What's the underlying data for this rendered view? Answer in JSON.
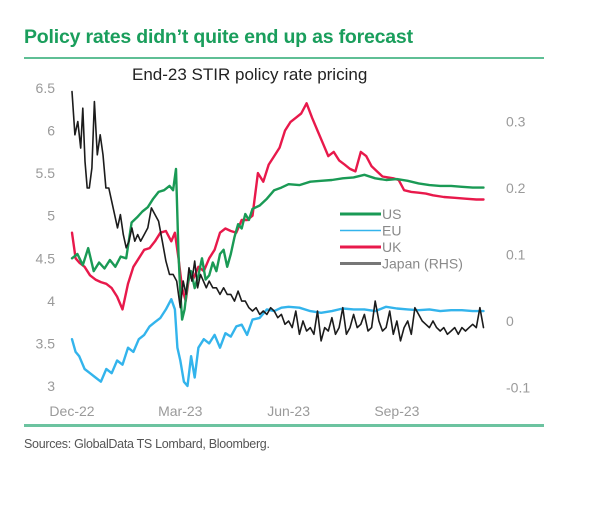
{
  "header": {
    "title": "Policy rates didn’t quite end up as forecast",
    "source": "Sources: GlobalData TS Lombard, Bloomberg."
  },
  "chart_data": {
    "type": "line",
    "title": "End-23 STIR policy rate pricing",
    "xlabel": "",
    "ylabel": "",
    "x_unit": "months since Dec-22",
    "x_ticks": [
      {
        "label": "Dec-22",
        "x": 0
      },
      {
        "label": "Mar-23",
        "x": 3
      },
      {
        "label": "Jun-23",
        "x": 6
      },
      {
        "label": "Sep-23",
        "x": 9
      }
    ],
    "xlim": [
      0,
      11.5
    ],
    "y_left": {
      "ticks": [
        "3",
        "3.5",
        "4",
        "4.5",
        "5",
        "5.5",
        "6",
        "6.5"
      ],
      "values": [
        3,
        3.5,
        4,
        4.5,
        5,
        5.5,
        6,
        6.5
      ],
      "ylim": [
        3,
        6.5
      ]
    },
    "y_right": {
      "ticks": [
        "-0.1",
        "0",
        "0.1",
        "0.2",
        "0.3"
      ],
      "values": [
        -0.1,
        0,
        0.1,
        0.2,
        0.3
      ],
      "ylim": [
        -0.1,
        0.348
      ]
    },
    "grid": false,
    "legend_position": "center-right",
    "series": [
      {
        "name": "US",
        "axis": "left",
        "color": "#1a9a55",
        "x": [
          0,
          0.15,
          0.3,
          0.45,
          0.6,
          0.75,
          0.9,
          1.05,
          1.2,
          1.35,
          1.5,
          1.65,
          1.8,
          1.95,
          2.1,
          2.25,
          2.4,
          2.55,
          2.7,
          2.8,
          2.88,
          2.95,
          3.0,
          3.05,
          3.12,
          3.2,
          3.3,
          3.4,
          3.5,
          3.6,
          3.7,
          3.8,
          3.9,
          4.0,
          4.1,
          4.2,
          4.3,
          4.4,
          4.5,
          4.6,
          4.7,
          4.8,
          4.9,
          5.0,
          5.2,
          5.4,
          5.6,
          5.8,
          6.0,
          6.3,
          6.6,
          6.9,
          7.2,
          7.5,
          7.8,
          8.1,
          8.4,
          8.7,
          9.0,
          9.3,
          9.6,
          9.9,
          10.2,
          10.5,
          10.8,
          11.1,
          11.4
        ],
        "y": [
          4.5,
          4.55,
          4.42,
          4.62,
          4.35,
          4.45,
          4.38,
          4.48,
          4.4,
          4.52,
          4.5,
          4.92,
          4.98,
          5.05,
          5.1,
          5.2,
          5.28,
          5.3,
          5.35,
          5.3,
          5.55,
          4.55,
          4.1,
          3.78,
          3.9,
          4.2,
          4.35,
          4.15,
          4.3,
          4.5,
          4.25,
          4.3,
          4.45,
          4.35,
          4.55,
          4.6,
          4.4,
          4.55,
          4.75,
          4.9,
          4.85,
          5.02,
          4.95,
          5.08,
          5.12,
          5.2,
          5.3,
          5.33,
          5.37,
          5.36,
          5.4,
          5.41,
          5.42,
          5.44,
          5.45,
          5.48,
          5.44,
          5.42,
          5.43,
          5.41,
          5.38,
          5.36,
          5.35,
          5.35,
          5.34,
          5.33,
          5.33
        ]
      },
      {
        "name": "EU",
        "axis": "left",
        "color": "#33b4ec",
        "x": [
          0,
          0.1,
          0.2,
          0.35,
          0.5,
          0.65,
          0.8,
          0.95,
          1.1,
          1.25,
          1.4,
          1.55,
          1.7,
          1.85,
          2.0,
          2.15,
          2.3,
          2.45,
          2.6,
          2.75,
          2.85,
          2.92,
          3.0,
          3.1,
          3.2,
          3.3,
          3.4,
          3.5,
          3.65,
          3.8,
          3.95,
          4.1,
          4.25,
          4.4,
          4.55,
          4.7,
          4.85,
          5.0,
          5.2,
          5.4,
          5.6,
          5.8,
          6.0,
          6.3,
          6.6,
          6.9,
          7.2,
          7.5,
          7.8,
          8.1,
          8.4,
          8.7,
          9.0,
          9.3,
          9.6,
          9.9,
          10.2,
          10.5,
          10.8,
          11.1,
          11.4
        ],
        "y": [
          3.55,
          3.4,
          3.35,
          3.2,
          3.15,
          3.1,
          3.05,
          3.2,
          3.15,
          3.3,
          3.25,
          3.45,
          3.4,
          3.55,
          3.6,
          3.7,
          3.75,
          3.8,
          3.9,
          4.02,
          3.9,
          3.45,
          3.3,
          3.05,
          3.0,
          3.35,
          3.1,
          3.45,
          3.55,
          3.5,
          3.6,
          3.45,
          3.62,
          3.58,
          3.7,
          3.72,
          3.6,
          3.78,
          3.8,
          3.9,
          3.88,
          3.92,
          3.93,
          3.92,
          3.88,
          3.86,
          3.88,
          3.91,
          3.9,
          3.9,
          3.88,
          3.93,
          3.91,
          3.9,
          3.89,
          3.9,
          3.88,
          3.89,
          3.89,
          3.88,
          3.88
        ]
      },
      {
        "name": "UK",
        "axis": "left",
        "color": "#e8194b",
        "x": [
          0,
          0.1,
          0.2,
          0.35,
          0.5,
          0.65,
          0.8,
          0.95,
          1.1,
          1.25,
          1.4,
          1.55,
          1.7,
          1.85,
          2.0,
          2.15,
          2.3,
          2.45,
          2.6,
          2.75,
          2.85,
          2.95,
          3.05,
          3.15,
          3.25,
          3.35,
          3.5,
          3.65,
          3.8,
          3.95,
          4.1,
          4.25,
          4.4,
          4.55,
          4.7,
          4.85,
          5.0,
          5.15,
          5.3,
          5.45,
          5.6,
          5.75,
          5.9,
          6.05,
          6.2,
          6.35,
          6.5,
          6.65,
          6.8,
          6.95,
          7.1,
          7.25,
          7.4,
          7.55,
          7.7,
          7.85,
          8.0,
          8.15,
          8.3,
          8.45,
          8.6,
          8.75,
          8.9,
          9.05,
          9.2,
          9.4,
          9.6,
          9.8,
          10.0,
          10.3,
          10.6,
          10.9,
          11.2,
          11.4
        ],
        "y": [
          4.8,
          4.5,
          4.45,
          4.4,
          4.3,
          4.25,
          4.22,
          4.2,
          4.15,
          4.05,
          3.9,
          4.2,
          4.4,
          4.5,
          4.6,
          4.62,
          4.7,
          4.8,
          4.82,
          4.7,
          4.8,
          4.5,
          4.15,
          4.0,
          4.3,
          4.25,
          4.4,
          4.35,
          4.5,
          4.6,
          4.8,
          4.85,
          4.82,
          4.8,
          4.95,
          4.95,
          5.0,
          5.5,
          5.4,
          5.6,
          5.7,
          5.8,
          6.0,
          6.1,
          6.15,
          6.2,
          6.32,
          6.15,
          6.0,
          5.85,
          5.7,
          5.75,
          5.65,
          5.6,
          5.55,
          5.52,
          5.75,
          5.7,
          5.58,
          5.52,
          5.46,
          5.45,
          5.44,
          5.42,
          5.3,
          5.28,
          5.27,
          5.26,
          5.24,
          5.22,
          5.21,
          5.2,
          5.19,
          5.19
        ]
      },
      {
        "name": "Japan (RHS)",
        "axis": "right",
        "color": "#1c1c1c",
        "x": [
          0,
          0.08,
          0.16,
          0.24,
          0.3,
          0.36,
          0.42,
          0.48,
          0.55,
          0.62,
          0.7,
          0.78,
          0.86,
          0.94,
          1.02,
          1.1,
          1.18,
          1.26,
          1.34,
          1.42,
          1.5,
          1.58,
          1.66,
          1.74,
          1.82,
          1.9,
          2.0,
          2.1,
          2.2,
          2.3,
          2.4,
          2.5,
          2.6,
          2.7,
          2.8,
          2.9,
          3.0,
          3.08,
          3.16,
          3.24,
          3.32,
          3.4,
          3.48,
          3.56,
          3.64,
          3.72,
          3.8,
          3.9,
          4.0,
          4.1,
          4.2,
          4.3,
          4.4,
          4.5,
          4.6,
          4.7,
          4.8,
          4.9,
          5.0,
          5.1,
          5.2,
          5.3,
          5.4,
          5.5,
          5.6,
          5.7,
          5.8,
          5.9,
          6.0,
          6.1,
          6.2,
          6.3,
          6.4,
          6.5,
          6.6,
          6.7,
          6.8,
          6.9,
          7.0,
          7.1,
          7.2,
          7.3,
          7.4,
          7.5,
          7.6,
          7.7,
          7.8,
          7.9,
          8.0,
          8.1,
          8.2,
          8.3,
          8.4,
          8.5,
          8.6,
          8.7,
          8.8,
          8.9,
          9.0,
          9.1,
          9.2,
          9.3,
          9.4,
          9.5,
          9.6,
          9.7,
          9.8,
          9.9,
          10.0,
          10.1,
          10.2,
          10.3,
          10.4,
          10.5,
          10.6,
          10.7,
          10.8,
          10.9,
          11.0,
          11.1,
          11.2,
          11.3,
          11.4
        ],
        "y": [
          0.345,
          0.28,
          0.3,
          0.26,
          0.32,
          0.24,
          0.2,
          0.2,
          0.23,
          0.33,
          0.25,
          0.28,
          0.25,
          0.2,
          0.2,
          0.18,
          0.16,
          0.14,
          0.16,
          0.13,
          0.11,
          0.12,
          0.14,
          0.12,
          0.13,
          0.12,
          0.13,
          0.14,
          0.17,
          0.16,
          0.15,
          0.12,
          0.09,
          0.07,
          0.07,
          0.06,
          0.02,
          0.06,
          0.04,
          0.08,
          0.06,
          0.09,
          0.05,
          0.07,
          0.06,
          0.05,
          0.06,
          0.05,
          0.05,
          0.04,
          0.05,
          0.04,
          0.04,
          0.03,
          0.045,
          0.03,
          0.03,
          0.02,
          0.015,
          0.02,
          0.01,
          0.015,
          0.01,
          0.02,
          0.015,
          0.005,
          0.01,
          -0.005,
          0.0,
          -0.01,
          0.015,
          -0.02,
          0.0,
          -0.015,
          -0.01,
          -0.02,
          0.015,
          -0.03,
          -0.01,
          -0.015,
          0.005,
          -0.02,
          -0.01,
          0.02,
          -0.02,
          -0.01,
          0.01,
          -0.01,
          -0.005,
          0.01,
          -0.015,
          -0.01,
          0.03,
          0.0,
          -0.015,
          -0.01,
          0.015,
          -0.02,
          0.0,
          -0.03,
          -0.01,
          0.0,
          -0.02,
          0.02,
          0.01,
          0.0,
          -0.005,
          -0.01,
          0.0,
          -0.01,
          -0.015,
          -0.01,
          -0.02,
          -0.015,
          -0.01,
          -0.02,
          -0.01,
          -0.015,
          -0.01,
          -0.005,
          -0.01,
          0.02,
          -0.01
        ]
      }
    ]
  }
}
